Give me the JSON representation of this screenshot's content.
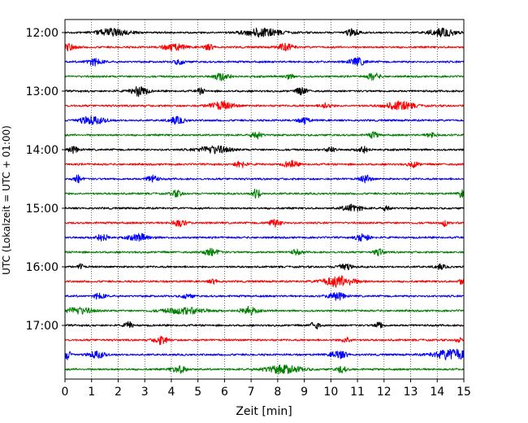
{
  "chart_data": {
    "type": "line",
    "subtype": "seismogram helicorder",
    "xlabel": "Zeit  [min]",
    "ylabel": "UTC (Lokalzeit = UTC + 01:00)",
    "xlim": [
      0,
      15
    ],
    "x_ticks": [
      "0",
      "1",
      "2",
      "3",
      "4",
      "5",
      "6",
      "7",
      "8",
      "9",
      "10",
      "11",
      "12",
      "13",
      "14",
      "15"
    ],
    "y_ticks": [
      "12:00",
      "13:00",
      "14:00",
      "15:00",
      "16:00",
      "17:00"
    ],
    "grid_x": true,
    "trace_colors": [
      "#000000",
      "#ff0000",
      "#0000ff",
      "#008000"
    ],
    "traces": [
      {
        "start": "12:00",
        "color": "#000000",
        "bursts": [
          [
            1.8,
            0.6,
            0.55
          ],
          [
            7.4,
            0.7,
            0.6
          ],
          [
            10.8,
            0.25,
            0.5
          ],
          [
            14.2,
            0.5,
            0.55
          ]
        ]
      },
      {
        "start": "12:15",
        "color": "#ff0000",
        "bursts": [
          [
            0.1,
            0.3,
            0.5
          ],
          [
            4.1,
            0.4,
            0.5
          ],
          [
            8.3,
            0.3,
            0.5
          ],
          [
            5.4,
            0.2,
            0.4
          ]
        ]
      },
      {
        "start": "12:30",
        "color": "#0000ff",
        "bursts": [
          [
            1.1,
            0.3,
            0.5
          ],
          [
            11.0,
            0.3,
            0.55
          ],
          [
            4.3,
            0.2,
            0.35
          ]
        ]
      },
      {
        "start": "12:45",
        "color": "#008000",
        "bursts": [
          [
            5.9,
            0.3,
            0.55
          ],
          [
            11.6,
            0.25,
            0.5
          ],
          [
            8.4,
            0.2,
            0.3
          ]
        ]
      },
      {
        "start": "13:00",
        "color": "#000000",
        "bursts": [
          [
            2.8,
            0.3,
            0.75
          ],
          [
            8.9,
            0.2,
            0.55
          ],
          [
            5.1,
            0.15,
            0.4
          ]
        ]
      },
      {
        "start": "13:15",
        "color": "#ff0000",
        "bursts": [
          [
            5.9,
            0.45,
            0.55
          ],
          [
            12.6,
            0.55,
            0.6
          ],
          [
            9.8,
            0.2,
            0.4
          ]
        ]
      },
      {
        "start": "13:30",
        "color": "#0000ff",
        "bursts": [
          [
            1.0,
            0.5,
            0.55
          ],
          [
            4.2,
            0.3,
            0.5
          ],
          [
            9.0,
            0.2,
            0.5
          ]
        ]
      },
      {
        "start": "13:45",
        "color": "#008000",
        "bursts": [
          [
            7.2,
            0.2,
            0.55
          ],
          [
            11.6,
            0.2,
            0.4
          ],
          [
            13.8,
            0.2,
            0.35
          ]
        ]
      },
      {
        "start": "14:00",
        "color": "#000000",
        "bursts": [
          [
            0.3,
            0.2,
            0.45
          ],
          [
            5.6,
            0.6,
            0.55
          ],
          [
            10.0,
            0.15,
            0.5
          ],
          [
            11.2,
            0.2,
            0.5
          ]
        ]
      },
      {
        "start": "14:15",
        "color": "#ff0000",
        "bursts": [
          [
            6.6,
            0.2,
            0.55
          ],
          [
            8.5,
            0.25,
            0.55
          ],
          [
            13.1,
            0.2,
            0.4
          ]
        ]
      },
      {
        "start": "14:30",
        "color": "#0000ff",
        "bursts": [
          [
            0.5,
            0.15,
            0.55
          ],
          [
            3.3,
            0.2,
            0.55
          ],
          [
            11.3,
            0.2,
            0.55
          ]
        ]
      },
      {
        "start": "14:45",
        "color": "#008000",
        "bursts": [
          [
            4.2,
            0.2,
            0.45
          ],
          [
            7.2,
            0.15,
            0.75
          ],
          [
            14.9,
            0.1,
            0.55
          ]
        ]
      },
      {
        "start": "15:00",
        "color": "#000000",
        "bursts": [
          [
            10.8,
            0.35,
            0.55
          ],
          [
            12.1,
            0.15,
            0.4
          ]
        ]
      },
      {
        "start": "15:15",
        "color": "#ff0000",
        "bursts": [
          [
            4.3,
            0.25,
            0.5
          ],
          [
            7.9,
            0.25,
            0.5
          ],
          [
            14.3,
            0.1,
            0.55
          ]
        ]
      },
      {
        "start": "15:30",
        "color": "#0000ff",
        "bursts": [
          [
            1.4,
            0.25,
            0.5
          ],
          [
            2.8,
            0.4,
            0.5
          ],
          [
            11.2,
            0.25,
            0.6
          ]
        ]
      },
      {
        "start": "15:45",
        "color": "#008000",
        "bursts": [
          [
            5.5,
            0.3,
            0.5
          ],
          [
            11.8,
            0.2,
            0.45
          ],
          [
            8.7,
            0.2,
            0.35
          ]
        ]
      },
      {
        "start": "16:00",
        "color": "#000000",
        "bursts": [
          [
            0.6,
            0.1,
            0.45
          ],
          [
            10.5,
            0.25,
            0.55
          ],
          [
            14.1,
            0.2,
            0.35
          ]
        ]
      },
      {
        "start": "16:15",
        "color": "#ff0000",
        "bursts": [
          [
            10.3,
            0.6,
            0.8
          ],
          [
            14.9,
            0.1,
            0.45
          ],
          [
            5.6,
            0.2,
            0.3
          ]
        ]
      },
      {
        "start": "16:30",
        "color": "#0000ff",
        "bursts": [
          [
            1.3,
            0.2,
            0.45
          ],
          [
            10.2,
            0.3,
            0.6
          ],
          [
            4.6,
            0.2,
            0.35
          ]
        ]
      },
      {
        "start": "16:45",
        "color": "#008000",
        "bursts": [
          [
            0.5,
            0.5,
            0.5
          ],
          [
            4.5,
            0.8,
            0.45
          ],
          [
            6.9,
            0.3,
            0.6
          ]
        ]
      },
      {
        "start": "17:00",
        "color": "#000000",
        "bursts": [
          [
            2.4,
            0.15,
            0.5
          ],
          [
            9.4,
            0.15,
            0.65
          ],
          [
            11.8,
            0.15,
            0.5
          ]
        ]
      },
      {
        "start": "17:15",
        "color": "#ff0000",
        "bursts": [
          [
            3.6,
            0.25,
            0.6
          ],
          [
            10.6,
            0.2,
            0.4
          ],
          [
            14.8,
            0.1,
            0.45
          ]
        ]
      },
      {
        "start": "17:30",
        "color": "#0000ff",
        "bursts": [
          [
            0.1,
            0.15,
            0.7
          ],
          [
            1.2,
            0.3,
            0.5
          ],
          [
            10.3,
            0.3,
            0.6
          ],
          [
            14.6,
            0.7,
            0.8
          ]
        ]
      },
      {
        "start": "17:45",
        "color": "#008000",
        "bursts": [
          [
            4.3,
            0.3,
            0.5
          ],
          [
            8.2,
            0.7,
            0.6
          ],
          [
            10.4,
            0.2,
            0.45
          ]
        ]
      }
    ]
  }
}
